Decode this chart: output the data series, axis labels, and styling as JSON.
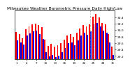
{
  "title": "Milwaukee Weather Barometric Pressure Daily High/Low",
  "ylim": [
    29.1,
    30.6
  ],
  "yticks": [
    29.2,
    29.4,
    29.6,
    29.8,
    30.0,
    30.2,
    30.4
  ],
  "high_values": [
    29.93,
    29.88,
    29.75,
    30.02,
    30.12,
    30.18,
    30.2,
    30.15,
    30.08,
    29.7,
    29.5,
    29.58,
    29.48,
    29.52,
    29.6,
    29.7,
    29.82,
    29.88,
    29.78,
    29.92,
    30.05,
    30.15,
    30.1,
    30.18,
    30.42,
    30.5,
    30.38,
    30.22,
    30.18,
    29.88,
    29.48
  ],
  "low_values": [
    29.68,
    29.62,
    29.55,
    29.82,
    29.9,
    29.95,
    29.98,
    29.88,
    29.72,
    29.32,
    29.18,
    29.22,
    29.15,
    29.2,
    29.32,
    29.45,
    29.6,
    29.62,
    29.52,
    29.68,
    29.82,
    29.92,
    29.85,
    29.95,
    30.18,
    30.22,
    30.12,
    29.98,
    29.92,
    29.62,
    29.22
  ],
  "high_color": "#ff0000",
  "low_color": "#0000ee",
  "bg_color": "#ffffff",
  "bar_width": 0.42,
  "title_fontsize": 4.2,
  "tick_fontsize": 3.0,
  "ytick_fontsize": 3.2,
  "dotted_lines": [
    23,
    24
  ]
}
